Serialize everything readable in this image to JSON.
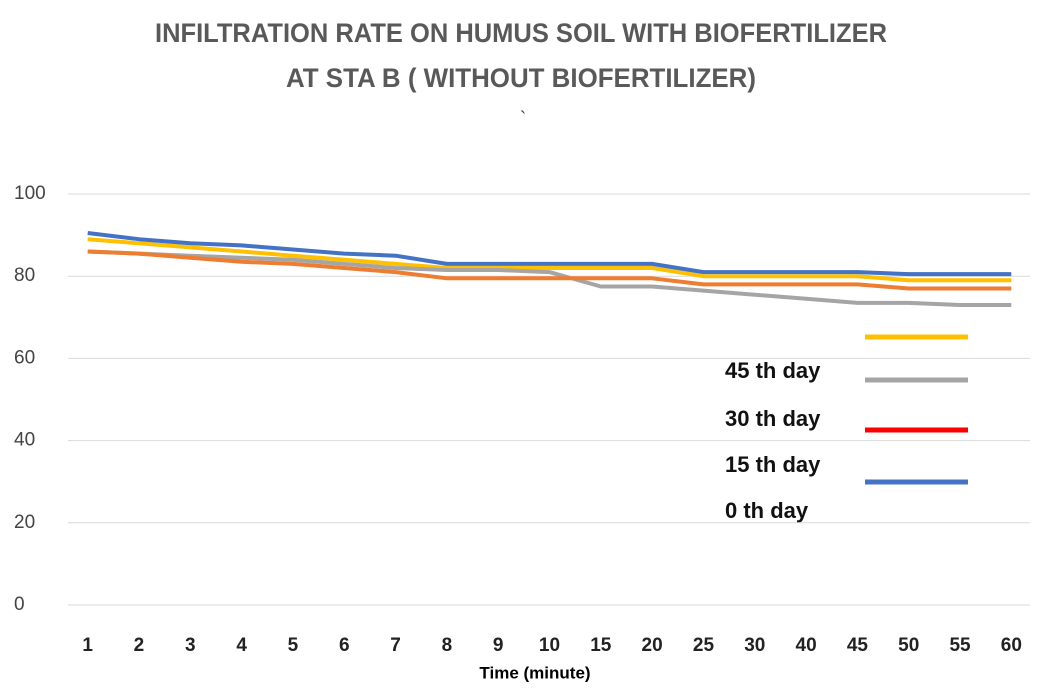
{
  "chart_data": {
    "type": "line",
    "title": "INFILTRATION RATE ON HUMUS SOIL WITH BIOFERTILIZER",
    "subtitle": "AT STA B ( WITHOUT BIOFERTILIZER)",
    "annotation": "`",
    "x_label": "Time (minute)",
    "categories": [
      "1",
      "2",
      "3",
      "4",
      "5",
      "6",
      "7",
      "8",
      "9",
      "10",
      "15",
      "20",
      "25",
      "30",
      "40",
      "45",
      "50",
      "55",
      "60"
    ],
    "ylim": [
      0,
      100
    ],
    "yticks": [
      0,
      20,
      40,
      60,
      80,
      100
    ],
    "grid": true,
    "legend": "right",
    "legend_note": "0 th day",
    "series": [
      {
        "color": "#ffc000",
        "values": [
          89,
          88,
          87,
          86,
          85,
          84,
          83,
          82,
          82,
          82,
          82,
          82,
          80,
          80,
          80,
          80,
          79,
          79,
          79
        ]
      },
      {
        "name": "45 th day",
        "color": "#a5a5a5",
        "values": [
          86,
          85.5,
          85,
          84.5,
          84,
          83,
          82,
          81.5,
          81.5,
          81,
          77.5,
          77.5,
          76.5,
          75.5,
          74.5,
          73.5,
          73.5,
          73,
          73
        ]
      },
      {
        "name": "30 th day",
        "color": "#ed7d31",
        "legend_color": "#ff0000",
        "values": [
          86,
          85.5,
          84.5,
          83.5,
          83,
          82,
          81,
          79.5,
          79.5,
          79.5,
          79.5,
          79.5,
          78,
          78,
          78,
          78,
          77,
          77,
          77
        ]
      },
      {
        "name": "15 th day",
        "color": "#4472c4",
        "values": [
          90.5,
          89,
          88,
          87.5,
          86.5,
          85.5,
          85,
          83,
          83,
          83,
          83,
          83,
          81,
          81,
          81,
          81,
          80.5,
          80.5,
          80.5
        ]
      }
    ]
  }
}
